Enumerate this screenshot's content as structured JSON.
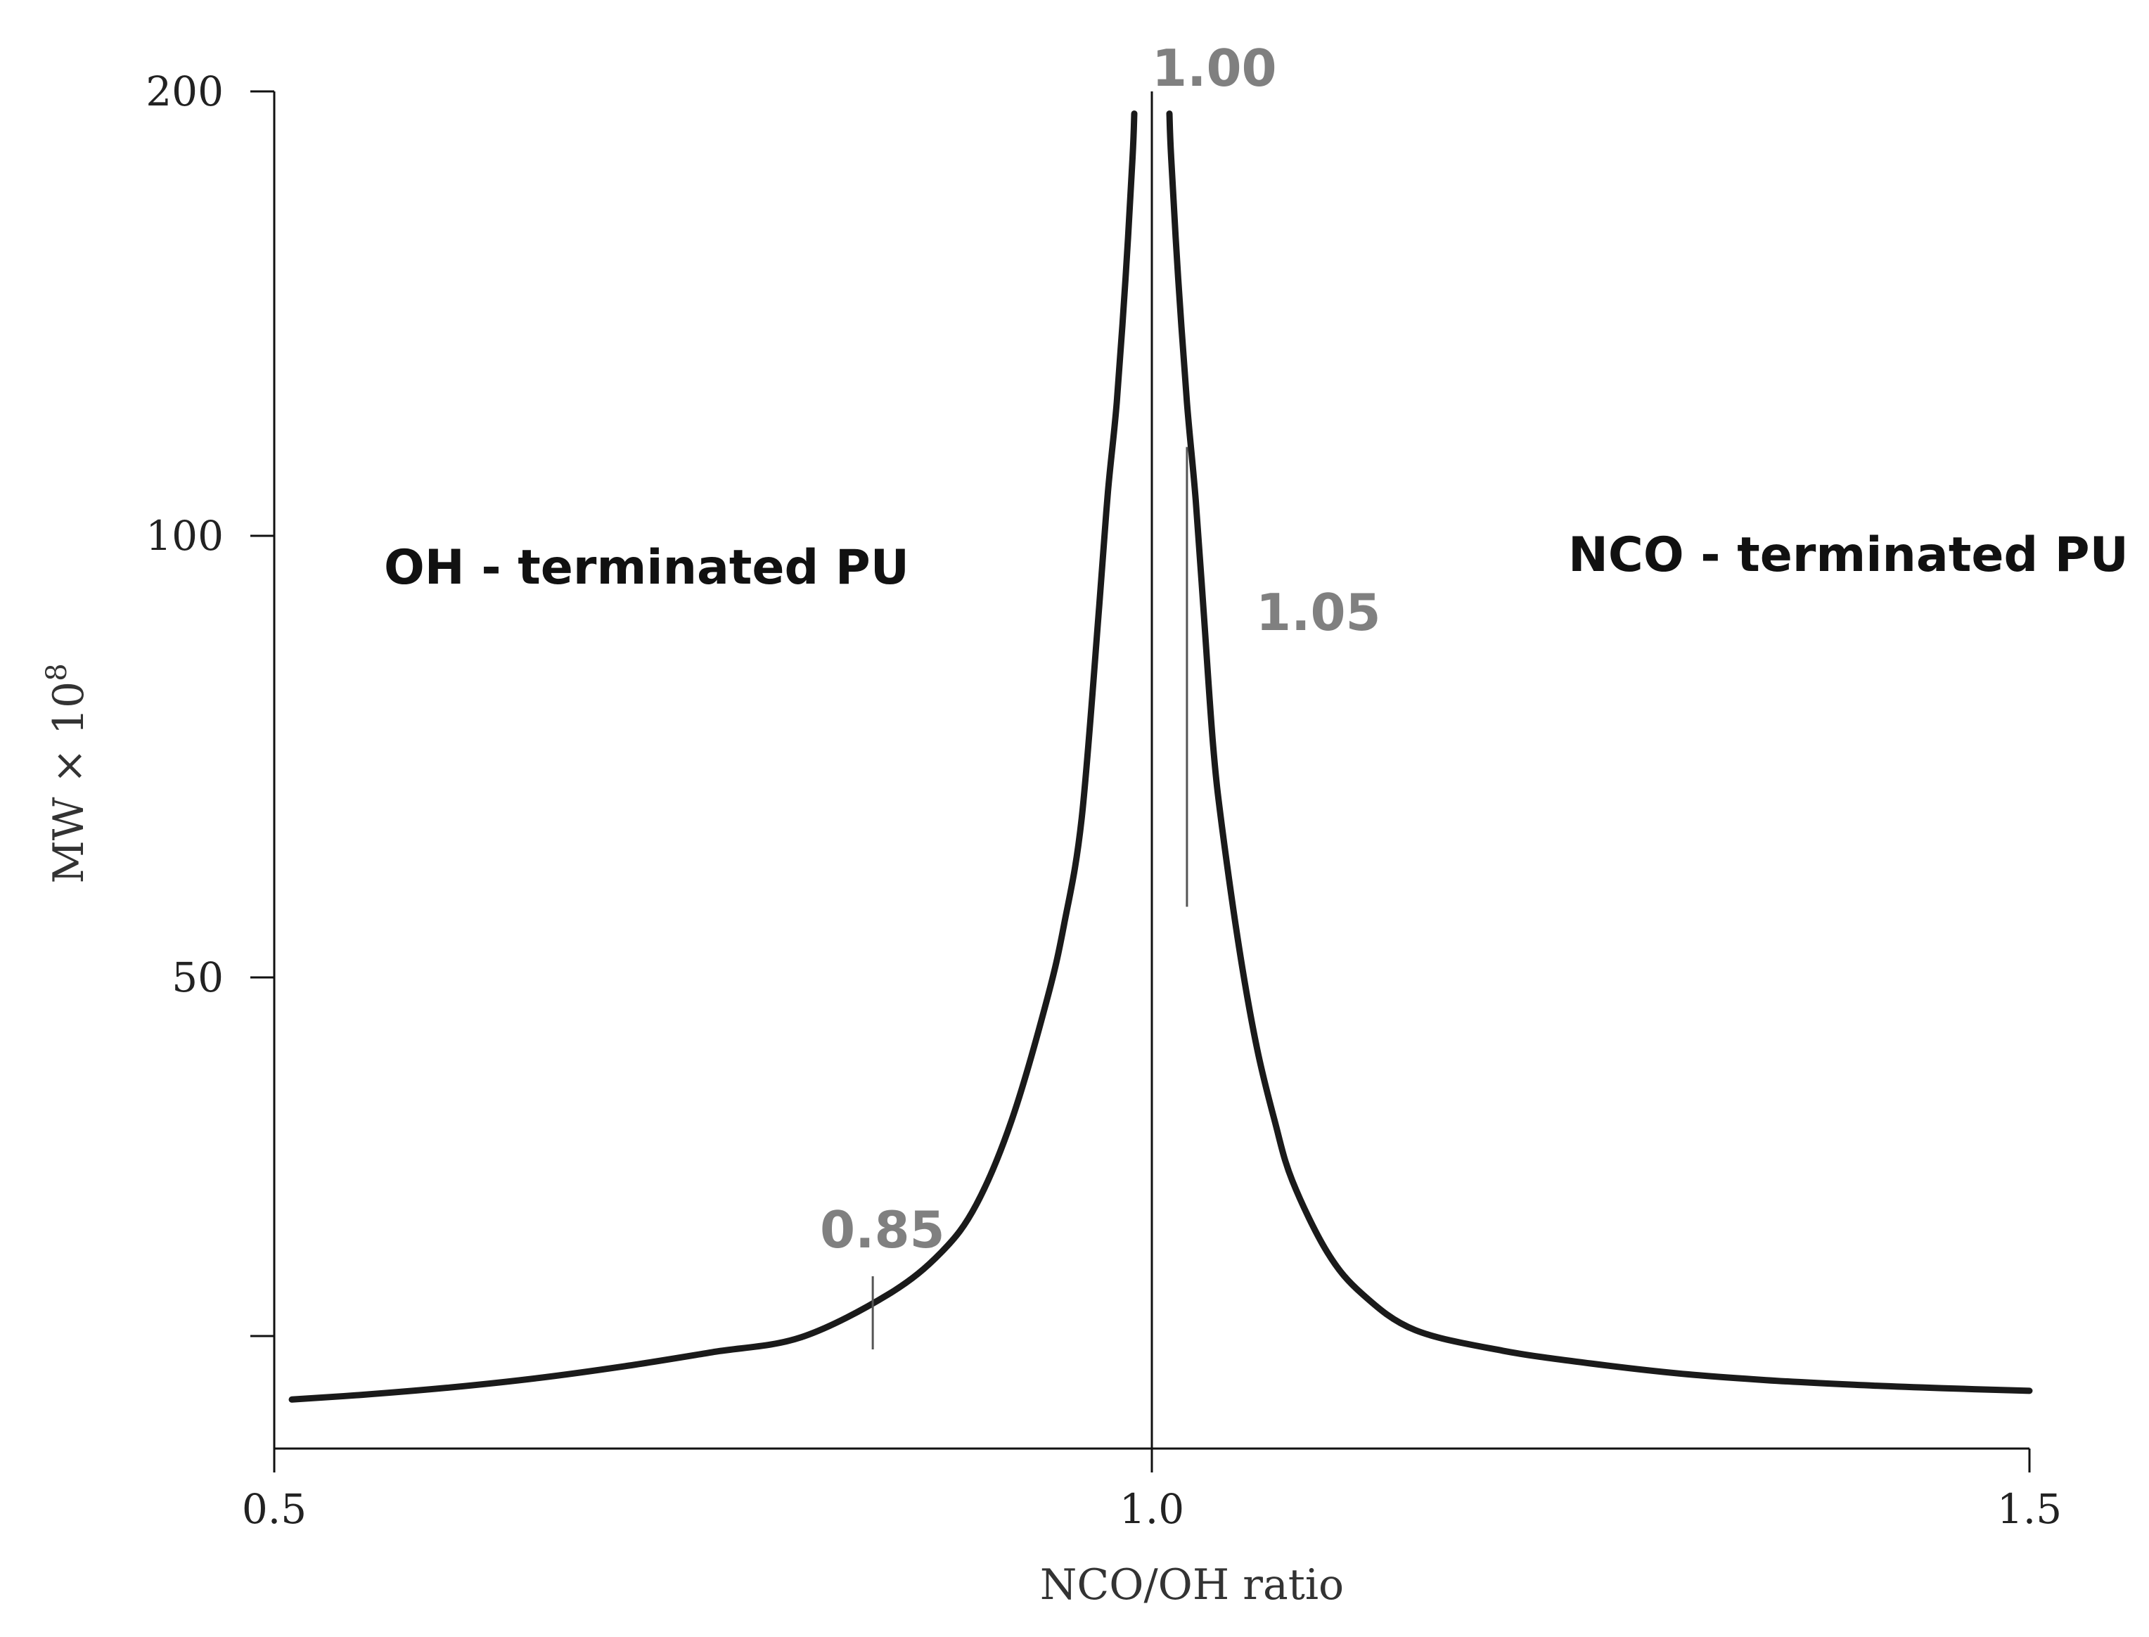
{
  "chart_data": {
    "type": "line",
    "title": "",
    "xlabel": "NCO/OH ratio",
    "ylabel_main": "MW × 10",
    "ylabel_exp": "8",
    "xlim": [
      0.5,
      1.5
    ],
    "ylim": [
      0,
      200
    ],
    "x_ticks": [
      {
        "value": 0.5,
        "label": "0.5"
      },
      {
        "value": 1.0,
        "label": "1.0"
      },
      {
        "value": 1.5,
        "label": "1.5"
      }
    ],
    "y_ticks": [
      {
        "value": 20,
        "label": ""
      },
      {
        "value": 50,
        "label": "50"
      },
      {
        "value": 100,
        "label": "100"
      },
      {
        "value": 200,
        "label": "200"
      }
    ],
    "series": [
      {
        "name": "MW",
        "left_branch": {
          "x": [
            0.51,
            0.55,
            0.6,
            0.65,
            0.7,
            0.75,
            0.8,
            0.85,
            0.88,
            0.9,
            0.92,
            0.94,
            0.95,
            0.96,
            0.97,
            0.975,
            0.98,
            0.985,
            0.989,
            0.99
          ],
          "y": [
            10.5,
            11.2,
            12.3,
            13.7,
            15.5,
            17.6,
            19.8,
            23.5,
            27,
            31,
            38,
            48,
            56,
            68,
            92,
            110,
            130,
            158,
            185,
            195
          ]
        },
        "right_branch": {
          "x": [
            1.01,
            1.011,
            1.015,
            1.02,
            1.025,
            1.03,
            1.035,
            1.04,
            1.05,
            1.06,
            1.07,
            1.08,
            1.1,
            1.12,
            1.15,
            1.2,
            1.25,
            1.3,
            1.35,
            1.4,
            1.45,
            1.5
          ],
          "y": [
            195,
            185,
            158,
            130,
            108,
            90,
            76,
            67,
            53,
            44,
            38,
            33,
            27,
            23.5,
            20.5,
            17.8,
            15.9,
            14.4,
            13.4,
            12.7,
            12.2,
            11.8
          ]
        }
      }
    ],
    "annotations": [
      {
        "text": "1.00",
        "x": 1.0,
        "marker": false
      },
      {
        "text": "1.05",
        "x": 1.02,
        "marker": true,
        "marker_y": [
          58,
          120
        ]
      },
      {
        "text": "0.85",
        "x": 0.841,
        "marker": true,
        "marker_y": [
          18,
          25
        ]
      }
    ],
    "regions": [
      {
        "text": "OH - terminated PU",
        "side": "left"
      },
      {
        "text": "NCO - terminated PU",
        "side": "right"
      }
    ]
  }
}
